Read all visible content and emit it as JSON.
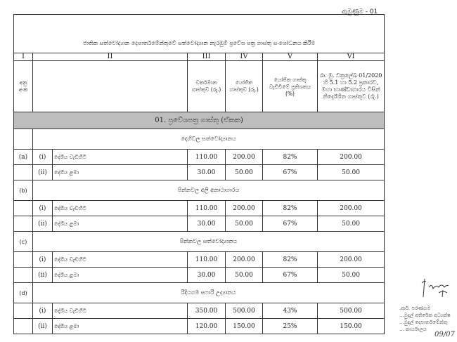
{
  "annex_label": "ඇමුණුම - 01",
  "title": "ජාතික සත්වෝද්‍යාන දෙපාර්තමේන්තුවේ සත්වෝද්‍යාන නැරඹුම් ප්‍රවේශ පත්‍ර ගාස්තු සංශෝධනය කිරීම",
  "columns": {
    "roman": [
      "I",
      "II",
      "III",
      "IV",
      "V",
      "VI"
    ],
    "serial": "අනු අංක",
    "current_fee": "වර්තමාන ගාස්තුව (රු.)",
    "proposed_fee": "යෝජිත ගාස්තුව (රු.)",
    "increase_pct": "යෝජිත ගාස්තු වැඩිවීමේ ප්‍රතිශතය (%)",
    "recommended_fee": "රා. මු. චක්‍රලේඛ 01/2020 හි 5.1 හා 5.2 ප්‍රකාරව, මහා භාණ්ඩාගාරය විසින් නිර්දේශිත ගාස්තුව (රු.)"
  },
  "section": "01. ප්‍රවේශපත්‍ර ගාස්තු (ඒකක)",
  "groups": [
    {
      "letter": "(a)",
      "name": "දෙහිවල සත්වෝද්‍යානය",
      "rows": [
        {
          "num": "(i)",
          "label": "දේශීය වැඩිහිටි",
          "current": "110.00",
          "proposed": "200.00",
          "pct": "82%",
          "recommended": "200.00"
        },
        {
          "num": "(ii)",
          "label": "දේශීය ළමා",
          "current": "30.00",
          "proposed": "50.00",
          "pct": "67%",
          "recommended": "50.00"
        }
      ]
    },
    {
      "letter": "(b)",
      "name": "පින්නවල අලි අනාථාගාරය",
      "rows": [
        {
          "num": "(i)",
          "label": "දේශීය වැඩිහිටි",
          "current": "110.00",
          "proposed": "200.00",
          "pct": "82%",
          "recommended": "200.00"
        },
        {
          "num": "(ii)",
          "label": "දේශීය ළමා",
          "current": "30.00",
          "proposed": "50.00",
          "pct": "67%",
          "recommended": "50.00"
        }
      ]
    },
    {
      "letter": "(c)",
      "name": "පින්නවල සත්වෝද්‍යානය",
      "rows": [
        {
          "num": "(i)",
          "label": "දේශීය වැඩිහිටි",
          "current": "110.00",
          "proposed": "200.00",
          "pct": "82%",
          "recommended": "200.00"
        },
        {
          "num": "(ii)",
          "label": "දේශීය ළමා",
          "current": "30.00",
          "proposed": "50.00",
          "pct": "67%",
          "recommended": "50.00"
        }
      ]
    },
    {
      "letter": "(d)",
      "name": "රිදියගම සෆාරි උද්‍යානය",
      "rows": [
        {
          "num": "(i)",
          "label": "දේශීය වැඩිහිටි",
          "current": "350.00",
          "proposed": "500.00",
          "pct": "43%",
          "recommended": "500.00"
        },
        {
          "num": "(ii)",
          "label": "දේශීය ළමා",
          "current": "120.00",
          "proposed": "150.00",
          "pct": "25%",
          "recommended": "150.00"
        }
      ]
    }
  ],
  "stamp": {
    "lines": [
      ".ආර්. පරණගම",
      "...මුදල් අතිරේක අධ්‍යක්ෂ",
      "...මුදල් දෙපාර්තමේන්තු",
      "... කාර්යාලය"
    ],
    "date": "09/07"
  }
}
